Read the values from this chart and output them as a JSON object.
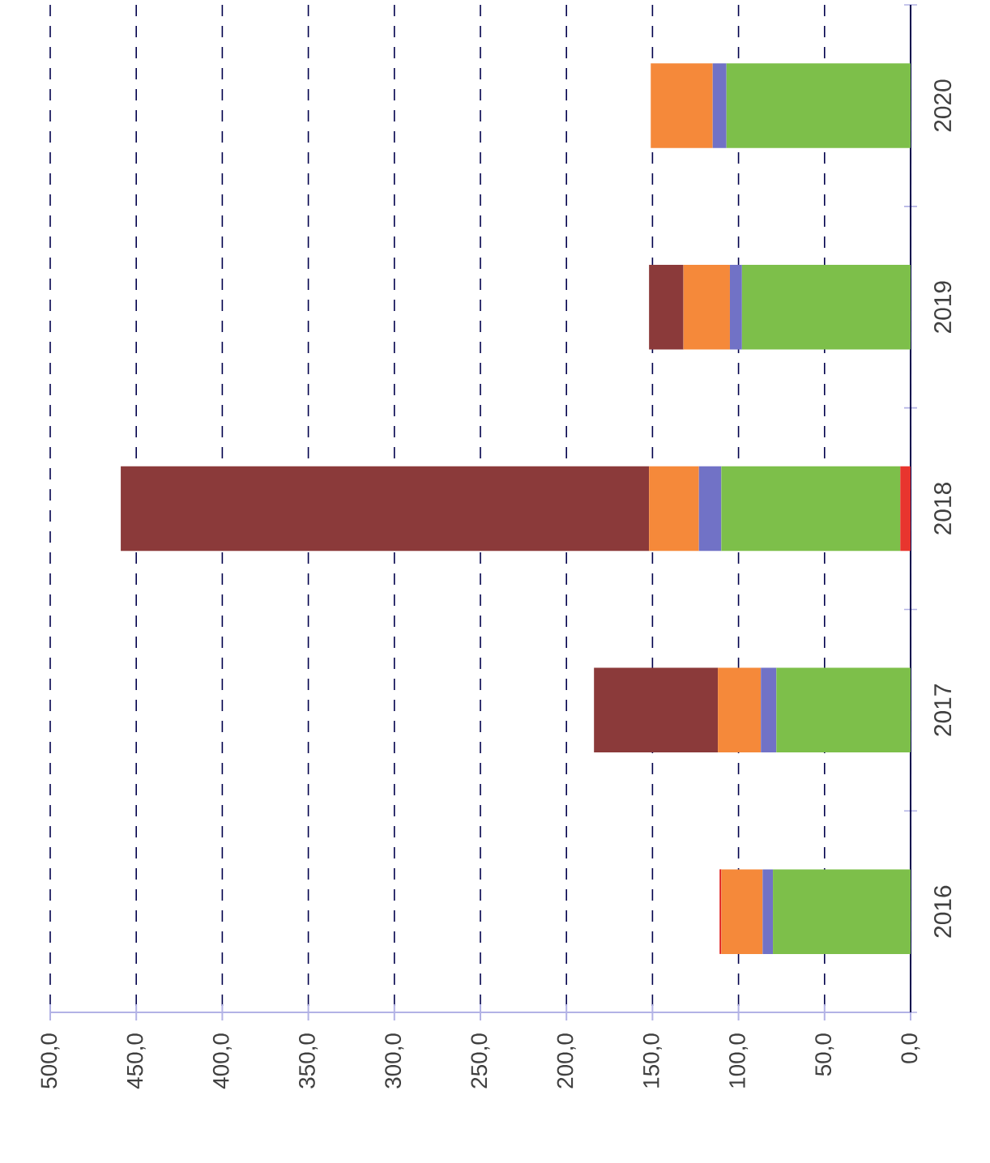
{
  "chart_data": {
    "type": "bar",
    "orientation": "horizontal",
    "stacked": true,
    "categories": [
      "2020",
      "2019",
      "2018",
      "2017",
      "2016"
    ],
    "series": [
      {
        "color": "#e8352e",
        "values": [
          null,
          null,
          6,
          null,
          null
        ]
      },
      {
        "color": "#7dbf4a",
        "values": [
          107,
          98,
          104,
          78,
          80
        ]
      },
      {
        "color": "#7172c6",
        "values": [
          8,
          7,
          13,
          9,
          6
        ]
      },
      {
        "color": "#f5893a",
        "values": [
          36,
          27,
          29,
          25,
          24
        ]
      },
      {
        "color": "#8b3a3a",
        "values": [
          null,
          20,
          307,
          72,
          null
        ]
      },
      {
        "color": "#e02020",
        "values": [
          null,
          null,
          null,
          null,
          1
        ]
      }
    ],
    "xlim": [
      500,
      0
    ],
    "xticks": [
      {
        "value": 500,
        "label": "500,0"
      },
      {
        "value": 450,
        "label": "450,0"
      },
      {
        "value": 400,
        "label": "400,0"
      },
      {
        "value": 350,
        "label": "350,0"
      },
      {
        "value": 300,
        "label": "300,0"
      },
      {
        "value": 250,
        "label": "250,0"
      },
      {
        "value": 200,
        "label": "200,0"
      },
      {
        "value": 150,
        "label": "150,0"
      },
      {
        "value": 100,
        "label": "100,0"
      },
      {
        "value": 50,
        "label": "50,0"
      },
      {
        "value": 0,
        "label": "0,0"
      }
    ],
    "grid": "x"
  }
}
